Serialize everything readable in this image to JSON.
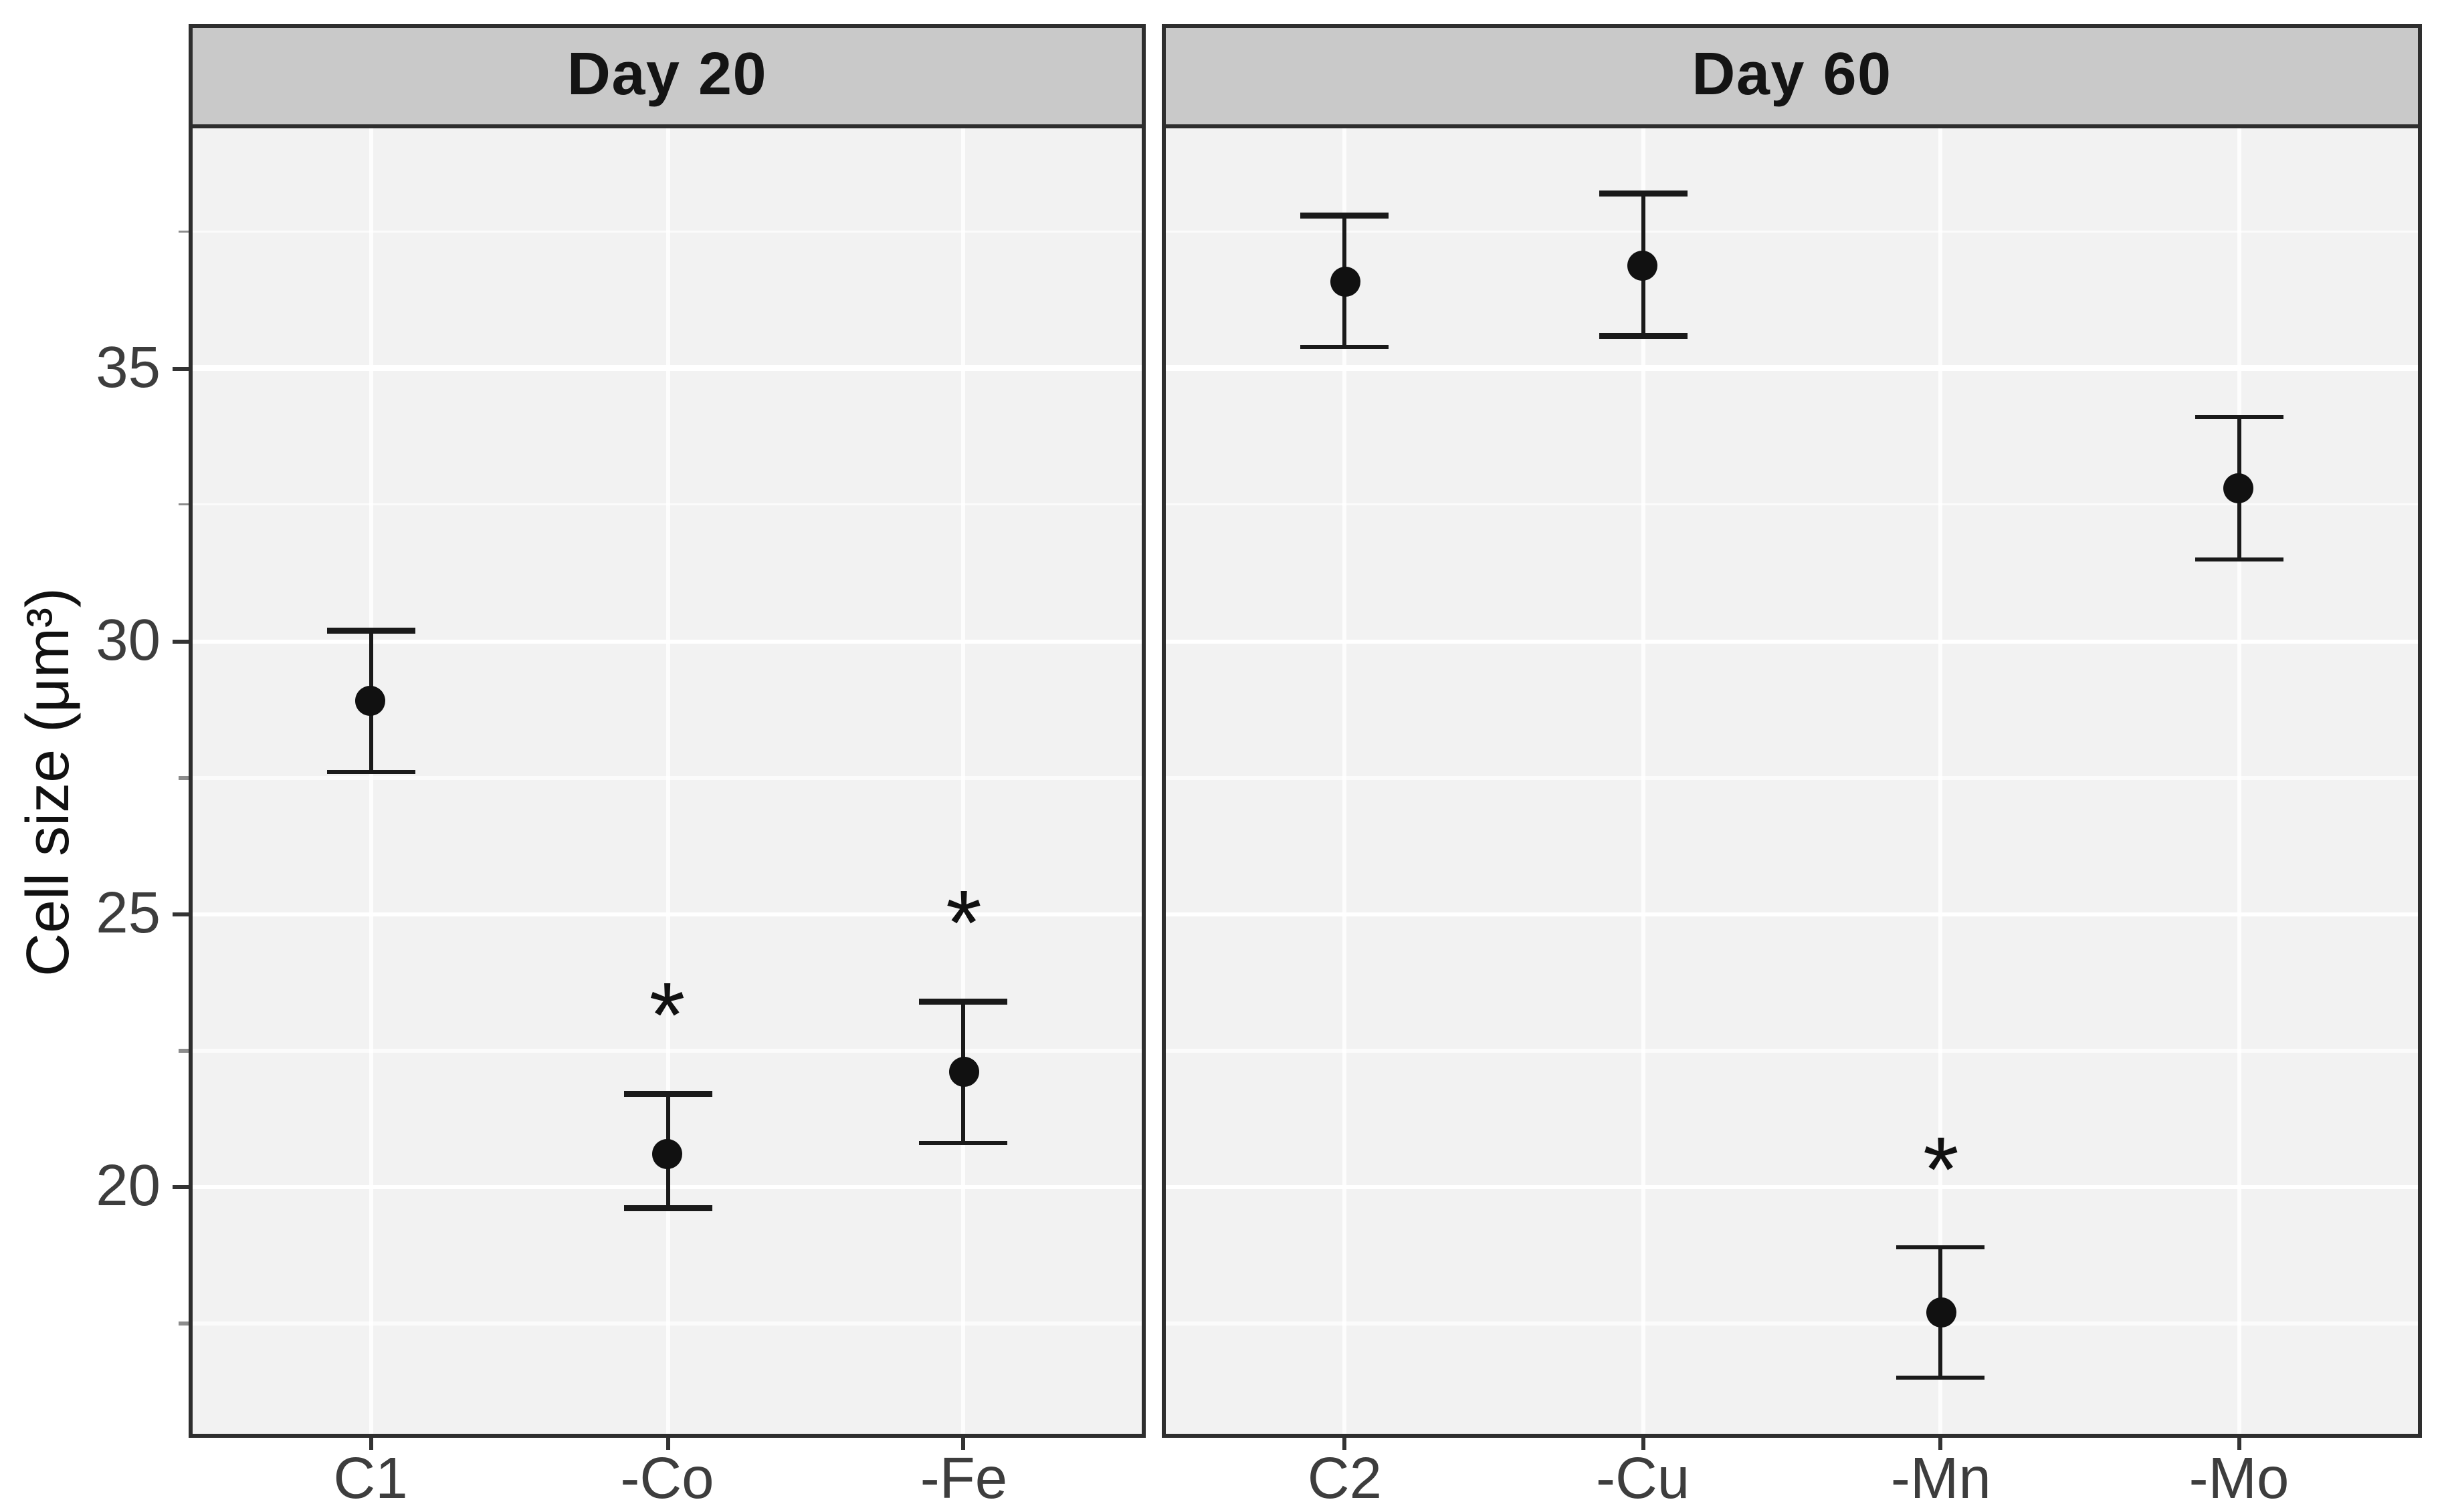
{
  "chart_data": {
    "type": "scatter",
    "subtype": "pointrange-errorbar-faceted",
    "title": "",
    "xlabel": "",
    "ylabel": "Cell size (μm³)",
    "ylim": [
      15.4,
      39.4
    ],
    "y_ticks": [
      35,
      30,
      25,
      20
    ],
    "y_minor_ticks": [
      37.5,
      32.5,
      27.5,
      22.5,
      17.5
    ],
    "grid": true,
    "legend_position": "none",
    "significance_marker": "*",
    "sig_marker_offset_units": 1.7,
    "facets": [
      {
        "label": "Day 20",
        "categories": [
          "C1",
          "-Co",
          "-Fe"
        ],
        "series": [
          {
            "category": "C1",
            "mean": 28.9,
            "lower": 27.6,
            "upper": 30.2,
            "significant": false
          },
          {
            "category": "-Co",
            "mean": 20.6,
            "lower": 19.6,
            "upper": 21.7,
            "significant": true
          },
          {
            "category": "-Fe",
            "mean": 22.1,
            "lower": 20.8,
            "upper": 23.4,
            "significant": true
          }
        ]
      },
      {
        "label": "Day 60",
        "categories": [
          "C2",
          "-Cu",
          "-Mn",
          "-Mo"
        ],
        "series": [
          {
            "category": "C2",
            "mean": 36.6,
            "lower": 35.4,
            "upper": 37.8,
            "significant": false
          },
          {
            "category": "-Cu",
            "mean": 36.9,
            "lower": 35.6,
            "upper": 38.2,
            "significant": false
          },
          {
            "category": "-Mn",
            "mean": 17.7,
            "lower": 16.5,
            "upper": 18.9,
            "significant": true
          },
          {
            "category": "-Mo",
            "mean": 32.8,
            "lower": 31.5,
            "upper": 34.1,
            "significant": false
          }
        ]
      }
    ],
    "colors": {
      "point": "#111111",
      "errorbar": "#1a1a1a",
      "panel_background": "#f2f2f2",
      "header_background": "#c9c9c9",
      "border": "#2e2e2e",
      "gridline": "#ffffff",
      "tick_label": "#3d3d3d"
    }
  }
}
